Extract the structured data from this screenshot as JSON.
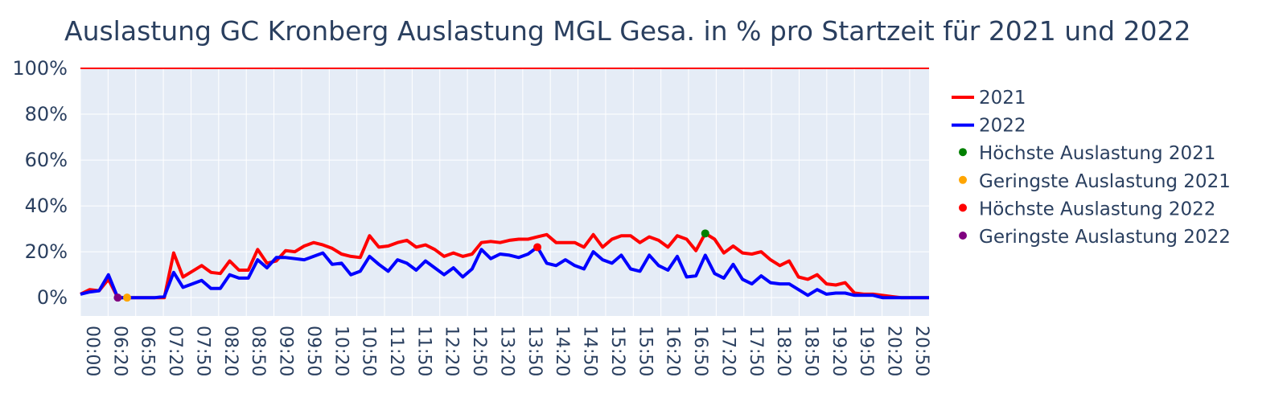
{
  "chart_data": {
    "type": "line",
    "title": "Auslastung GC Kronberg Auslastung MGL Gesa. in % pro Startzeit für 2021 und 2022",
    "xlabel": "",
    "ylabel": "",
    "ylim": [
      -8,
      100
    ],
    "yticks": [
      0,
      20,
      40,
      60,
      80,
      100
    ],
    "ytick_labels": [
      "0%",
      "20%",
      "40%",
      "60%",
      "80%",
      "100%"
    ],
    "xtick_labels": [
      "00:00",
      "06:20",
      "06:50",
      "07:20",
      "07:50",
      "08:20",
      "08:50",
      "09:20",
      "09:50",
      "10:20",
      "10:50",
      "11:20",
      "11:50",
      "12:20",
      "12:50",
      "13:20",
      "13:50",
      "14:20",
      "14:50",
      "15:20",
      "15:50",
      "16:20",
      "16:50",
      "17:20",
      "17:50",
      "18:20",
      "18:50",
      "19:20",
      "19:50",
      "20:20",
      "20:50"
    ],
    "reference_line": {
      "value": 100,
      "color": "#ff0000"
    },
    "series": [
      {
        "name": "2021",
        "color": "#ff0000",
        "values": [
          1.5,
          3.5,
          3,
          8,
          0,
          0,
          0,
          0,
          0,
          0,
          19.5,
          9,
          11.5,
          14,
          11,
          10.5,
          16,
          12,
          12,
          21,
          15,
          16,
          20.5,
          20,
          22.5,
          24,
          23,
          21.5,
          19,
          18,
          17.5,
          27,
          22,
          22.5,
          24,
          25,
          22,
          23,
          21,
          18,
          19.5,
          18,
          19,
          24,
          24.5,
          24,
          25,
          25.5,
          25.5,
          26.5,
          27.5,
          24,
          24,
          24,
          22,
          27.5,
          22,
          25.5,
          27,
          27,
          24,
          26.5,
          25,
          22,
          27,
          25.5,
          20.5,
          28,
          25.5,
          19.5,
          22.5,
          19.5,
          19,
          20,
          16.5,
          14,
          16,
          9,
          8,
          10,
          6,
          5.5,
          6.5,
          2,
          1.5,
          1.5,
          1,
          0.5,
          0,
          0,
          0,
          0
        ]
      },
      {
        "name": "2022",
        "color": "#0000ff",
        "values": [
          1.5,
          2.5,
          3,
          10,
          0,
          0,
          0,
          0,
          0,
          0.5,
          11,
          4.5,
          6,
          7.5,
          4,
          4,
          10,
          8.5,
          8.5,
          16.5,
          13,
          17.5,
          17.5,
          17,
          16.5,
          18,
          19.5,
          14.5,
          15,
          10,
          11.5,
          18,
          14.5,
          11.5,
          16.5,
          15,
          12,
          16,
          13,
          10,
          13,
          9,
          12.5,
          21,
          17,
          19,
          18.5,
          17.5,
          19,
          22,
          15,
          14,
          16.5,
          14,
          12.5,
          20,
          16.5,
          15,
          18.5,
          12.5,
          11.5,
          18.5,
          14,
          12,
          18,
          9,
          9.5,
          18.5,
          10.5,
          8.5,
          14.5,
          8,
          6,
          9.5,
          6.5,
          6,
          6,
          3.5,
          1,
          3.5,
          1.5,
          2,
          2,
          1,
          1,
          1,
          0,
          0,
          0,
          0,
          0,
          0
        ]
      }
    ],
    "markers": [
      {
        "name": "Höchste Auslastung 2021",
        "color": "#008000",
        "index": 67,
        "value": 28
      },
      {
        "name": "Geringste Auslastung 2021",
        "color": "#ffa500",
        "index": 5,
        "value": 0
      },
      {
        "name": "Höchste Auslastung 2022",
        "color": "#ff0000",
        "index": 49,
        "value": 22
      },
      {
        "name": "Geringste Auslastung 2022",
        "color": "#800080",
        "index": 4,
        "value": 0
      }
    ],
    "legend": "right"
  }
}
